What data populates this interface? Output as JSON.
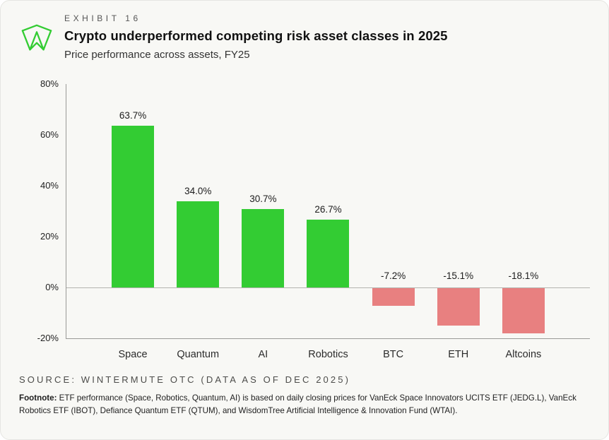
{
  "header": {
    "exhibit": "EXHIBIT 16",
    "title": "Crypto underperformed competing risk asset classes in 2025",
    "subtitle": "Price performance across assets, FY25"
  },
  "chart_data": {
    "type": "bar",
    "title": "Price performance across assets, FY25",
    "categories": [
      "Space",
      "Quantum",
      "AI",
      "Robotics",
      "BTC",
      "ETH",
      "Altcoins"
    ],
    "values": [
      63.7,
      34.0,
      30.7,
      26.7,
      -7.2,
      -15.1,
      -18.1
    ],
    "value_labels": [
      "63.7%",
      "34.0%",
      "30.7%",
      "26.7%",
      "-7.2%",
      "-15.1%",
      "-18.1%"
    ],
    "xlabel": "",
    "ylabel": "",
    "ylim": [
      -20,
      80
    ],
    "yticks": [
      80,
      60,
      40,
      20,
      0,
      -20
    ],
    "ytick_labels": [
      "80%",
      "60%",
      "40%",
      "20%",
      "0%",
      "-20%"
    ],
    "grid": "zero-line-only",
    "legend": "none",
    "positive_color": "#33cc33",
    "negative_color": "#e88080"
  },
  "footer": {
    "source": "SOURCE: WINTERMUTE OTC (DATA AS OF DEC 2025)",
    "footnote_label": "Footnote:",
    "footnote_text": " ETF performance (Space, Robotics, Quantum, AI) is based on daily closing prices for VanEck Space Innovators UCITS ETF (JEDG.L), VanEck Robotics ETF (IBOT), Defiance Quantum ETF (QTUM), and WisdomTree Artificial Intelligence & Innovation Fund (WTAI)."
  },
  "logo": {
    "name": "wintermute-logo",
    "color": "#33cc33"
  }
}
